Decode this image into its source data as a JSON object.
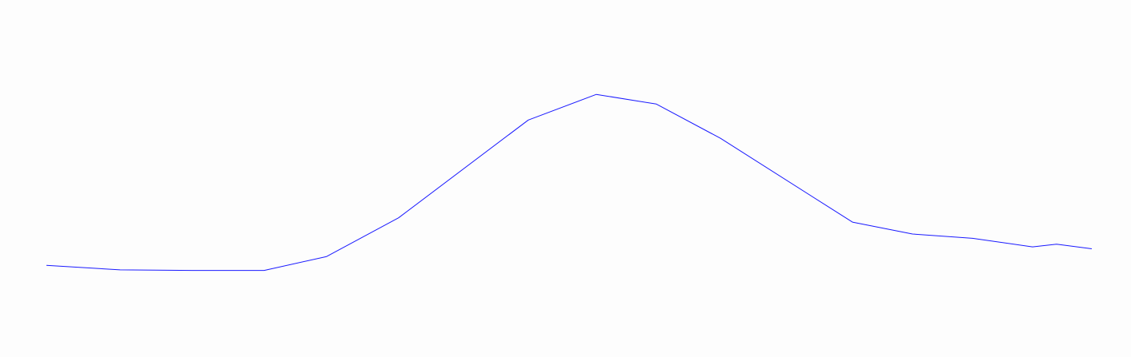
{
  "page": {
    "background": "#fdfdfd"
  },
  "chart_data": {
    "type": "line",
    "title": "",
    "xlabel": "",
    "ylabel": "",
    "grid": false,
    "legend": "none",
    "x": [
      0,
      1,
      2,
      3,
      4,
      5,
      6,
      7,
      8,
      9,
      10,
      11,
      12,
      13,
      14,
      15
    ],
    "xlim": [
      0,
      15
    ],
    "ylim": [
      0,
      100
    ],
    "series": [
      {
        "color": "#1a1aff",
        "values": [
          16.8,
          15.2,
          15.0,
          15.0,
          19.9,
          33.5,
          67.9,
          76.9,
          73.5,
          61.5,
          32.0,
          27.8,
          26.3,
          23.3,
          24.2,
          22.6
        ]
      }
    ]
  }
}
